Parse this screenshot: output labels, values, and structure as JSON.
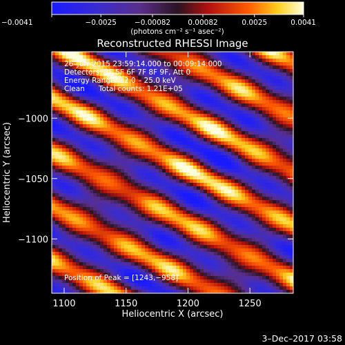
{
  "chart_data": {
    "type": "heatmap",
    "title": "Reconstructed RHESSI Image",
    "xlabel": "Heliocentric X (arcsec)",
    "ylabel": "Heliocentric Y (arcsec)",
    "xlim": [
      1090,
      1285
    ],
    "ylim": [
      -1145,
      -945
    ],
    "x_ticks": [
      1100,
      1150,
      1200,
      1250
    ],
    "y_ticks": [
      -1000,
      -1050,
      -1100
    ],
    "x_tick_labels": [
      "1100",
      "1150",
      "1200",
      "1250"
    ],
    "y_tick_labels": [
      "−1000",
      "−1050",
      "−1100"
    ],
    "colormap": "blue-purple-red-yellow-white",
    "colorbar": {
      "range": [
        -0.0041,
        0.0041
      ],
      "ticks": [
        -0.0041,
        -0.0025,
        -0.00082,
        0.00082,
        0.0025,
        0.0041
      ],
      "tick_labels": [
        "−0.0041",
        "−0.0025",
        "−0.00082",
        "0.00082",
        "0.0025",
        "0.0041"
      ],
      "unit_label": "(photons cm⁻² s⁻¹ asec⁻²)"
    },
    "annotations": [
      "26–Jun–2015 23:59:14.000 to 00:09:14.000",
      "Detectors: 3F 5F 6F 7F 8F 9F, Att 0",
      "Energy Range: 12.0 – 25.0 keV",
      "Clean      Total counts: 1.21E+05"
    ],
    "peak_label": "Position of Peak = [1243,−958]",
    "peak_position": [
      1243,
      -958
    ]
  },
  "footer": {
    "date_stamp": "3–Dec–2017 03:58"
  },
  "colors": {
    "background": "#000000",
    "foreground": "#ffffff"
  }
}
